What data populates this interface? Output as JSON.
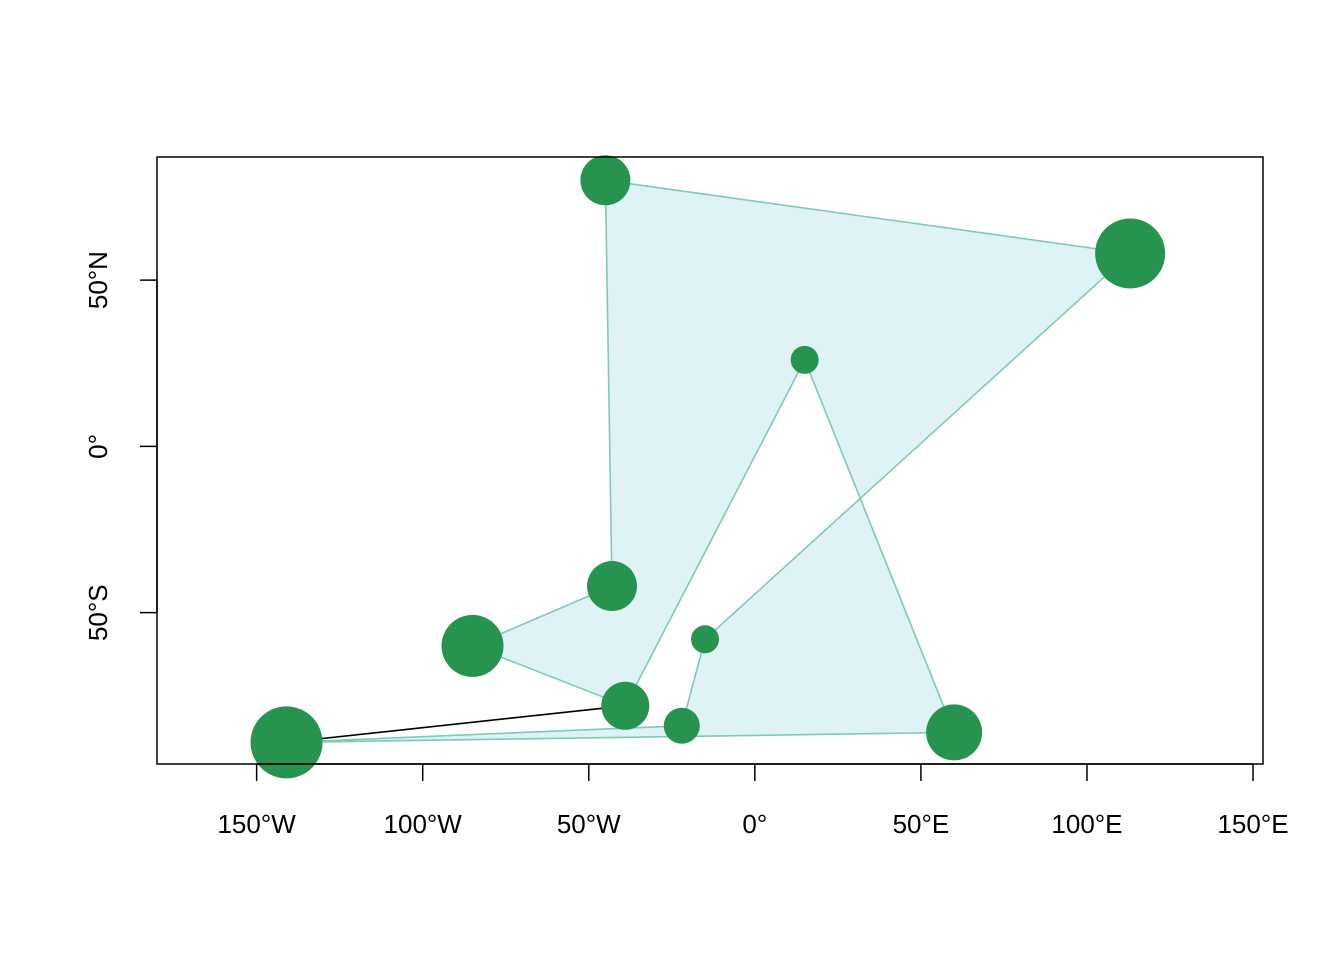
{
  "chart_data": {
    "type": "scatter",
    "title": "",
    "xlabel": "",
    "ylabel": "",
    "xlim": [
      -180,
      153
    ],
    "ylim": [
      -95.5,
      87
    ],
    "x_ticks": [
      {
        "value": -150,
        "label": "150°W"
      },
      {
        "value": -100,
        "label": "100°W"
      },
      {
        "value": -50,
        "label": "50°W"
      },
      {
        "value": 0,
        "label": "0°"
      },
      {
        "value": 50,
        "label": "50°E"
      },
      {
        "value": 100,
        "label": "100°E"
      },
      {
        "value": 150,
        "label": "150°E"
      }
    ],
    "y_ticks": [
      {
        "value": -50,
        "label": "50°S"
      },
      {
        "value": 0,
        "label": "0°"
      },
      {
        "value": 50,
        "label": "50°N"
      }
    ],
    "points": [
      {
        "lon": -141,
        "lat": -89,
        "size": 3.6
      },
      {
        "lon": -39,
        "lat": -78,
        "size": 2.4
      },
      {
        "lon": -85,
        "lat": -60,
        "size": 3.1
      },
      {
        "lon": -43,
        "lat": -42,
        "size": 2.5
      },
      {
        "lon": -45,
        "lat": 80,
        "size": 2.5
      },
      {
        "lon": 113,
        "lat": 58,
        "size": 3.5
      },
      {
        "lon": -15,
        "lat": -58,
        "size": 1.4
      },
      {
        "lon": 15,
        "lat": 26,
        "size": 1.4
      },
      {
        "lon": 60,
        "lat": -86,
        "size": 2.8
      },
      {
        "lon": -22,
        "lat": -84,
        "size": 1.8
      }
    ],
    "polygon_order": [
      0,
      9,
      6,
      5,
      4,
      3,
      2,
      1,
      7,
      8
    ],
    "open_segment": [
      0,
      1
    ],
    "grid": false,
    "legend": "none",
    "colors": {
      "point": "#26944e",
      "polygon_fill": "#dff2f5",
      "polygon_stroke": "#7fc9b8",
      "segment": "#000000",
      "axis": "#000000"
    }
  }
}
